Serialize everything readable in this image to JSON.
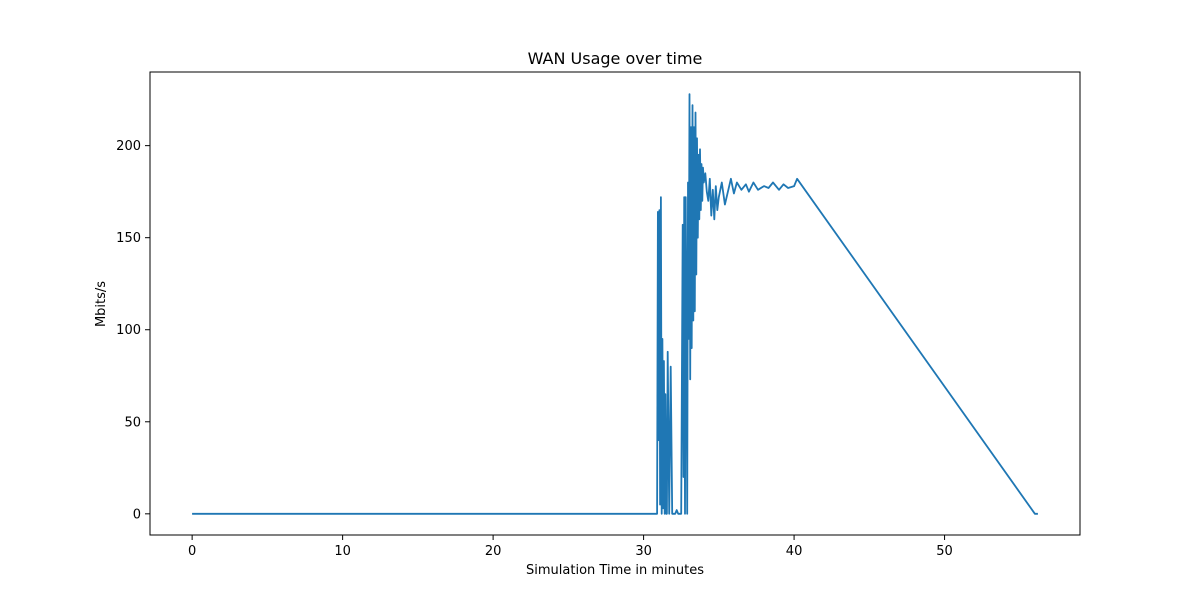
{
  "chart_data": {
    "type": "line",
    "title": "WAN Usage over time",
    "xlabel": "Simulation Time in minutes",
    "ylabel": "Mbits/s",
    "xlim": [
      -2.8,
      59.0
    ],
    "ylim": [
      -11.5,
      240.0
    ],
    "xticks": [
      0,
      10,
      20,
      30,
      40,
      50
    ],
    "yticks": [
      0,
      50,
      100,
      150,
      200
    ],
    "grid": false,
    "legend": "none",
    "series": [
      {
        "color": "#1f77b4",
        "x": [
          0.0,
          30.9,
          30.95,
          31.0,
          31.05,
          31.1,
          31.15,
          31.2,
          31.25,
          31.3,
          31.35,
          31.4,
          31.45,
          31.5,
          31.55,
          31.6,
          31.7,
          31.8,
          31.9,
          32.0,
          32.1,
          32.2,
          32.3,
          32.5,
          32.6,
          32.65,
          32.7,
          32.75,
          32.8,
          32.85,
          32.9,
          32.95,
          33.0,
          33.05,
          33.1,
          33.15,
          33.2,
          33.25,
          33.3,
          33.35,
          33.4,
          33.45,
          33.5,
          33.55,
          33.6,
          33.65,
          33.7,
          33.75,
          33.8,
          33.85,
          33.9,
          33.95,
          34.0,
          34.1,
          34.2,
          34.3,
          34.4,
          34.5,
          34.6,
          34.7,
          34.8,
          34.9,
          35.0,
          35.2,
          35.4,
          35.6,
          35.8,
          36.0,
          36.2,
          36.5,
          36.8,
          37.0,
          37.3,
          37.6,
          38.0,
          38.3,
          38.6,
          39.0,
          39.3,
          39.6,
          40.0,
          40.2,
          56.0,
          56.2
        ],
        "y": [
          0,
          0,
          164,
          40,
          165,
          5,
          172,
          0,
          95,
          3,
          83,
          0,
          65,
          0,
          0,
          88,
          0,
          80,
          0,
          0,
          0,
          2,
          0,
          0,
          157,
          20,
          172,
          0,
          172,
          100,
          0,
          180,
          95,
          228,
          73,
          210,
          90,
          222,
          105,
          210,
          110,
          218,
          130,
          204,
          150,
          195,
          160,
          198,
          165,
          190,
          170,
          188,
          180,
          185,
          175,
          170,
          182,
          162,
          176,
          160,
          178,
          165,
          172,
          180,
          168,
          175,
          182,
          174,
          180,
          176,
          179,
          175,
          180,
          176,
          178,
          177,
          180,
          176,
          179,
          177,
          178,
          182,
          0,
          0
        ]
      }
    ]
  }
}
